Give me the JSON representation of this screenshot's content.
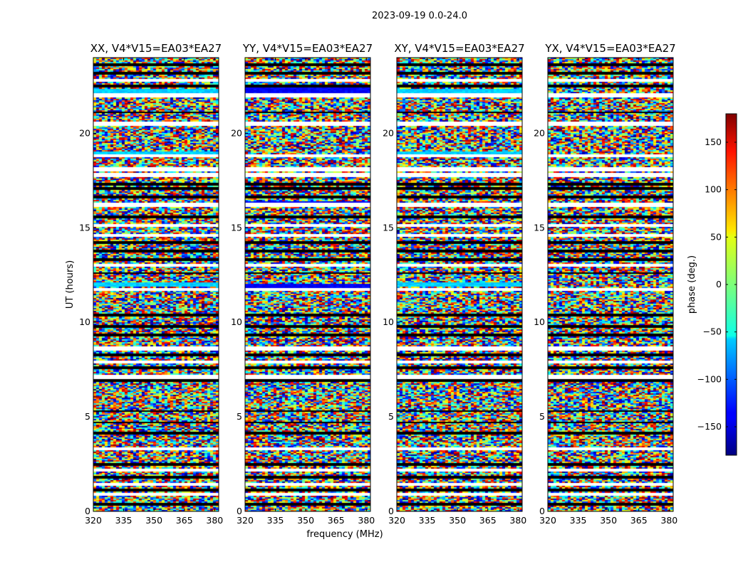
{
  "suptitle": "2023-09-19 0.0-24.0",
  "chart_data": {
    "type": "heatmap",
    "title": "2023-09-19 0.0-24.0",
    "panels": [
      {
        "title": "XX, V4*V15=EA03*EA27",
        "pol": "XX"
      },
      {
        "title": "YY, V4*V15=EA03*EA27",
        "pol": "YY"
      },
      {
        "title": "XY, V4*V15=EA03*EA27",
        "pol": "XY"
      },
      {
        "title": "YX, V4*V15=EA03*EA27",
        "pol": "YX"
      }
    ],
    "xlabel": "frequency (MHz)",
    "ylabel": "UT (hours)",
    "xlim": [
      320,
      382
    ],
    "ylim": [
      0,
      24
    ],
    "xticks": [
      320,
      335,
      350,
      365,
      380
    ],
    "yticks": [
      0,
      5,
      10,
      15,
      20
    ],
    "colorbar": {
      "label": "phase (deg.)",
      "range": [
        -180,
        180
      ],
      "ticks": [
        150,
        100,
        50,
        0,
        -50,
        -100,
        -150
      ],
      "colormap": "jet"
    },
    "flagged_ut_hours": [
      0.9,
      1.45,
      2.2,
      3.3,
      7.1,
      7.9,
      8.6,
      11.75,
      13.0,
      14.6,
      15.1,
      16.2,
      17.8,
      18.1,
      18.8,
      20.5,
      22.0,
      22.8
    ],
    "dark_ut_hours": [
      0.35,
      1.15,
      1.8,
      2.5,
      4.15,
      4.7,
      5.3,
      6.9,
      7.6,
      8.3,
      9.3,
      9.8,
      10.4,
      12.6,
      13.3,
      13.8,
      14.2,
      15.6,
      16.6,
      17.1,
      17.3,
      21.1,
      22.5,
      23.2,
      23.6
    ]
  }
}
